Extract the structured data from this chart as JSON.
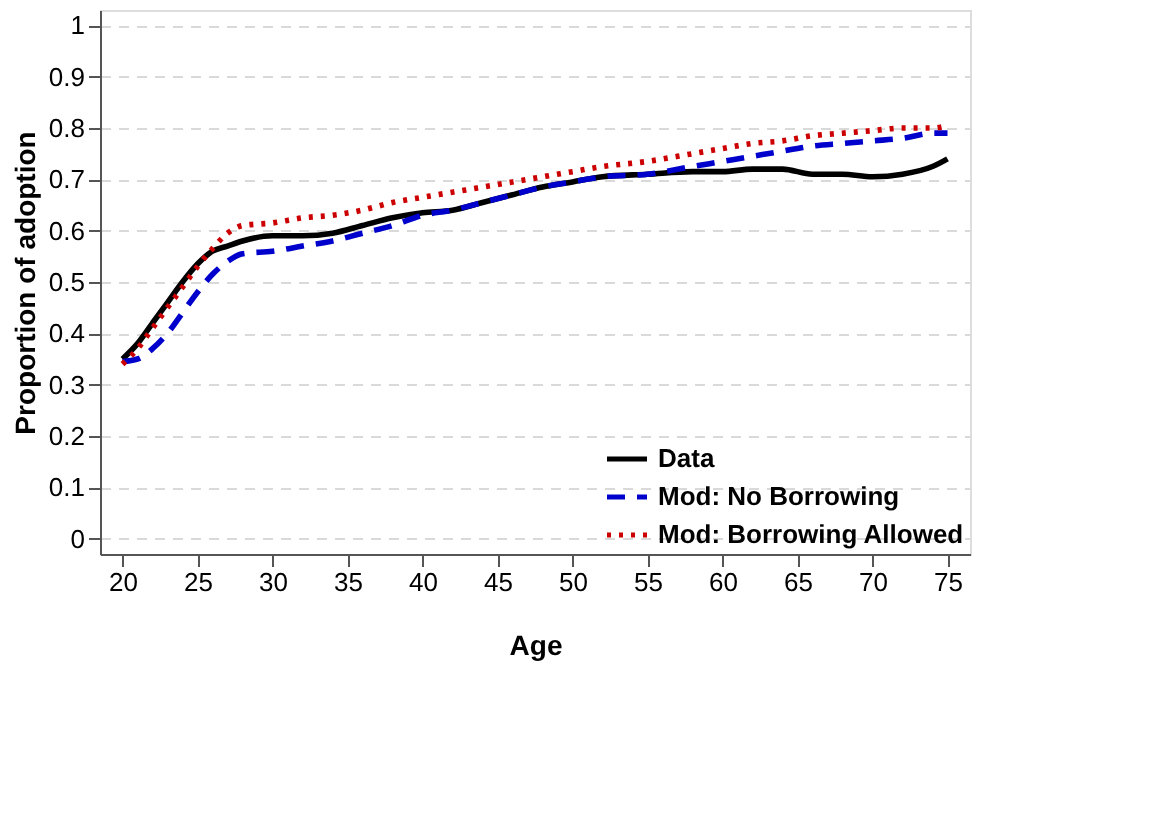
{
  "chart_data": {
    "type": "line",
    "xlabel": "Age",
    "ylabel": "Proportion of adoption",
    "x": [
      20,
      21,
      22,
      23,
      24,
      25,
      26,
      27,
      28,
      30,
      32,
      34,
      36,
      38,
      40,
      42,
      44,
      46,
      48,
      50,
      52,
      55,
      58,
      60,
      62,
      64,
      66,
      68,
      70,
      72,
      74,
      75
    ],
    "series": [
      {
        "name": "Data",
        "color": "#000000",
        "line_style": "solid",
        "values": [
          0.35,
          0.38,
          0.42,
          0.46,
          0.5,
          0.535,
          0.56,
          0.57,
          0.58,
          0.59,
          0.59,
          0.595,
          0.61,
          0.625,
          0.635,
          0.64,
          0.655,
          0.67,
          0.685,
          0.695,
          0.705,
          0.71,
          0.715,
          0.715,
          0.72,
          0.72,
          0.71,
          0.71,
          0.705,
          0.71,
          0.725,
          0.74
        ]
      },
      {
        "name": "Mod: No Borrowing",
        "color": "#0000cc",
        "line_style": "dashed",
        "values": [
          0.345,
          0.35,
          0.37,
          0.4,
          0.44,
          0.48,
          0.515,
          0.54,
          0.555,
          0.56,
          0.57,
          0.58,
          0.595,
          0.61,
          0.63,
          0.64,
          0.655,
          0.67,
          0.685,
          0.695,
          0.705,
          0.71,
          0.725,
          0.735,
          0.745,
          0.755,
          0.765,
          0.77,
          0.775,
          0.78,
          0.79,
          0.79
        ]
      },
      {
        "name": "Mod: Borrowing Allowed",
        "color": "#cc0000",
        "line_style": "dotted",
        "values": [
          0.34,
          0.37,
          0.41,
          0.45,
          0.49,
          0.53,
          0.565,
          0.595,
          0.61,
          0.615,
          0.625,
          0.63,
          0.64,
          0.655,
          0.665,
          0.675,
          0.685,
          0.695,
          0.705,
          0.715,
          0.725,
          0.735,
          0.75,
          0.76,
          0.77,
          0.775,
          0.785,
          0.79,
          0.795,
          0.8,
          0.8,
          0.805
        ]
      }
    ],
    "xlim": [
      18.5,
      76.5
    ],
    "xticks": [
      20,
      25,
      30,
      35,
      40,
      45,
      50,
      55,
      60,
      65,
      70,
      75
    ],
    "ylim": [
      -0.03,
      1.03
    ],
    "yticks": [
      0,
      0.1,
      0.2,
      0.3,
      0.4,
      0.5,
      0.6,
      0.7,
      0.8,
      0.9,
      1
    ],
    "grid": "y",
    "legend": "bottom right",
    "marker": "none"
  }
}
